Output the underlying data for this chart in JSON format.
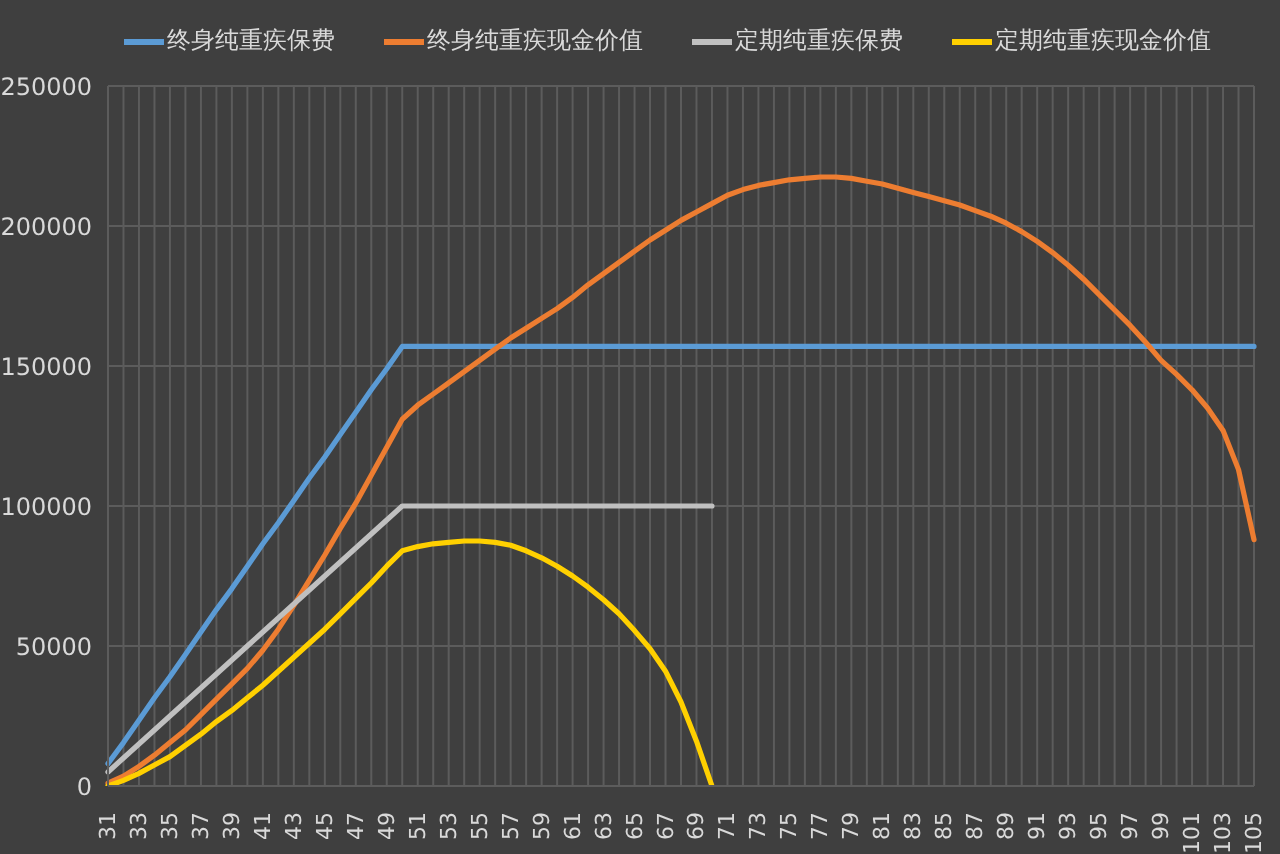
{
  "chart_data": {
    "type": "line",
    "categories": [
      "31",
      null,
      "33",
      null,
      "35",
      null,
      "37",
      null,
      "39",
      null,
      "41",
      null,
      "43",
      null,
      "45",
      null,
      "47",
      null,
      "49",
      null,
      "51",
      null,
      "53",
      null,
      "55",
      null,
      "57",
      null,
      "59",
      null,
      "61",
      null,
      "63",
      null,
      "65",
      null,
      "67",
      null,
      "69",
      null,
      "71",
      null,
      "73",
      null,
      "75",
      null,
      "77",
      null,
      "79",
      null,
      "81",
      null,
      "83",
      null,
      "85",
      null,
      "87",
      null,
      "89",
      null,
      "91",
      null,
      "93",
      null,
      "95",
      null,
      "97",
      null,
      "99",
      null,
      "101",
      null,
      "103",
      null,
      "105"
    ],
    "ylim": [
      0,
      250000
    ],
    "yticks": [
      0,
      50000,
      100000,
      150000,
      200000,
      250000
    ],
    "grid": true,
    "legend": "top",
    "marker": "none",
    "line_style": "solid",
    "series": [
      {
        "name": "终身纯重疾保费",
        "color": "#5b9bd5",
        "values": [
          8000,
          15500,
          23500,
          31500,
          39000,
          47000,
          55000,
          63000,
          70500,
          78500,
          86500,
          94000,
          102000,
          110000,
          117500,
          125500,
          133500,
          141500,
          149000,
          157000,
          157000,
          157000,
          157000,
          157000,
          157000,
          157000,
          157000,
          157000,
          157000,
          157000,
          157000,
          157000,
          157000,
          157000,
          157000,
          157000,
          157000,
          157000,
          157000,
          157000,
          157000,
          157000,
          157000,
          157000,
          157000,
          157000,
          157000,
          157000,
          157000,
          157000,
          157000,
          157000,
          157000,
          157000,
          157000,
          157000,
          157000,
          157000,
          157000,
          157000,
          157000,
          157000,
          157000,
          157000,
          157000,
          157000,
          157000,
          157000,
          157000,
          157000,
          157000,
          157000,
          157000,
          157000,
          157000
        ]
      },
      {
        "name": "终身纯重疾现金价值",
        "color": "#ed7d31",
        "values": [
          1000,
          3500,
          7000,
          11000,
          15500,
          20000,
          25500,
          31000,
          36500,
          42000,
          48500,
          56000,
          64500,
          73500,
          82500,
          92000,
          101000,
          111000,
          121000,
          131000,
          136000,
          140000,
          144000,
          148000,
          152000,
          156000,
          160000,
          163500,
          167000,
          170500,
          174500,
          179000,
          183000,
          187000,
          191000,
          195000,
          198500,
          202000,
          205000,
          208000,
          211000,
          213000,
          214500,
          215500,
          216500,
          217000,
          217500,
          217500,
          217000,
          216000,
          215000,
          213500,
          212000,
          210500,
          209000,
          207500,
          205500,
          203500,
          201000,
          198000,
          194500,
          190500,
          186000,
          181000,
          175500,
          170000,
          164500,
          158500,
          152000,
          147000,
          141500,
          135000,
          127000,
          113000,
          88000
        ]
      },
      {
        "name": "定期纯重疾保费",
        "color": "#c0c0c0",
        "values": [
          5000,
          10000,
          15000,
          20000,
          25000,
          30000,
          35000,
          40000,
          45000,
          50000,
          55000,
          60000,
          65000,
          70000,
          75000,
          80000,
          85000,
          90000,
          95000,
          100000,
          100000,
          100000,
          100000,
          100000,
          100000,
          100000,
          100000,
          100000,
          100000,
          100000,
          100000,
          100000,
          100000,
          100000,
          100000,
          100000,
          100000,
          100000,
          100000,
          100000,
          null,
          null,
          null,
          null,
          null,
          null,
          null,
          null,
          null,
          null,
          null,
          null,
          null,
          null,
          null,
          null,
          null,
          null,
          null,
          null,
          null,
          null,
          null,
          null,
          null,
          null,
          null,
          null,
          null,
          null,
          null,
          null,
          null,
          null,
          null
        ]
      },
      {
        "name": "定期纯重疾现金价值",
        "color": "#ffd000",
        "values": [
          0,
          2000,
          4500,
          7500,
          10500,
          14500,
          18500,
          23000,
          27000,
          31500,
          36000,
          41000,
          46000,
          51000,
          56000,
          61500,
          67000,
          72500,
          78500,
          84000,
          85500,
          86500,
          87000,
          87500,
          87500,
          87000,
          86000,
          84000,
          81500,
          78500,
          75000,
          71000,
          66500,
          61500,
          55500,
          49000,
          41000,
          30000,
          16000,
          0,
          null,
          null,
          null,
          null,
          null,
          null,
          null,
          null,
          null,
          null,
          null,
          null,
          null,
          null,
          null,
          null,
          null,
          null,
          null,
          null,
          null,
          null,
          null,
          null,
          null,
          null,
          null,
          null,
          null,
          null,
          null,
          null,
          null,
          null,
          null
        ]
      }
    ]
  }
}
